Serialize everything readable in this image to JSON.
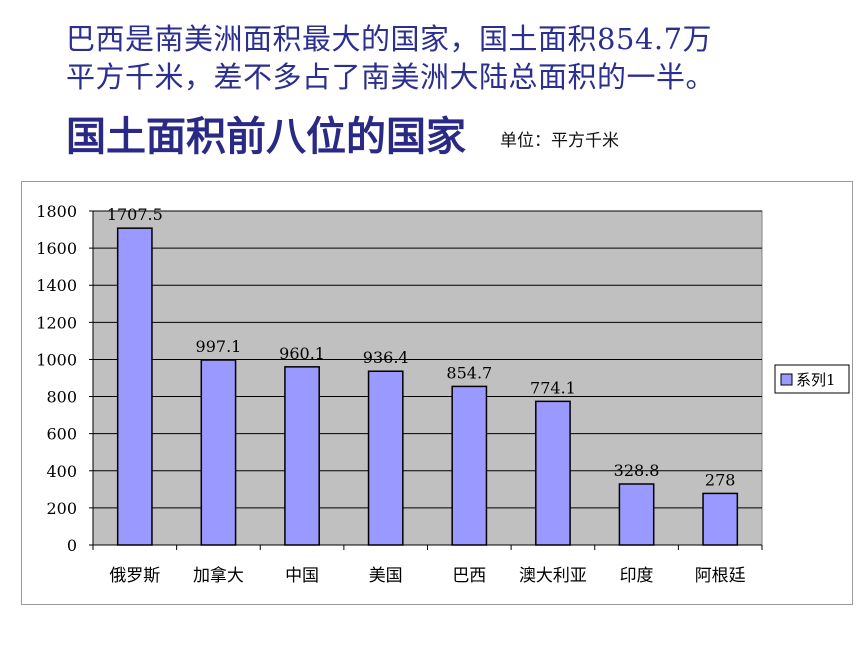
{
  "intro": {
    "line1": "巴西是南美洲面积最大的国家，国土面积854.7万",
    "line2": "平方千米，差不多占了南美洲大陆总面积的一半。"
  },
  "heading": "国土面积前八位的国家",
  "unit_label": "单位：平方千米",
  "chart_data": {
    "type": "bar",
    "title": "",
    "xlabel": "",
    "ylabel": "",
    "categories": [
      "俄罗斯",
      "加拿大",
      "中国",
      "美国",
      "巴西",
      "澳大利亚",
      "印度",
      "阿根廷"
    ],
    "series": [
      {
        "name": "系列1",
        "values": [
          1707.5,
          997.1,
          960.1,
          936.4,
          854.7,
          774.1,
          328.8,
          278
        ]
      }
    ],
    "data_labels": [
      "1707.5",
      "997.1",
      "960.1",
      "936.4",
      "854.7",
      "774.1",
      "328.8",
      "278"
    ],
    "ylim": [
      0,
      1800
    ],
    "yticks": [
      0,
      200,
      400,
      600,
      800,
      1000,
      1200,
      1400,
      1600,
      1800
    ],
    "grid": true,
    "legend_position": "right",
    "colors": {
      "bar": "#9999ff",
      "bar_edge": "#000000",
      "plot_bg": "#c0c0c0",
      "grid": "#000000"
    }
  }
}
